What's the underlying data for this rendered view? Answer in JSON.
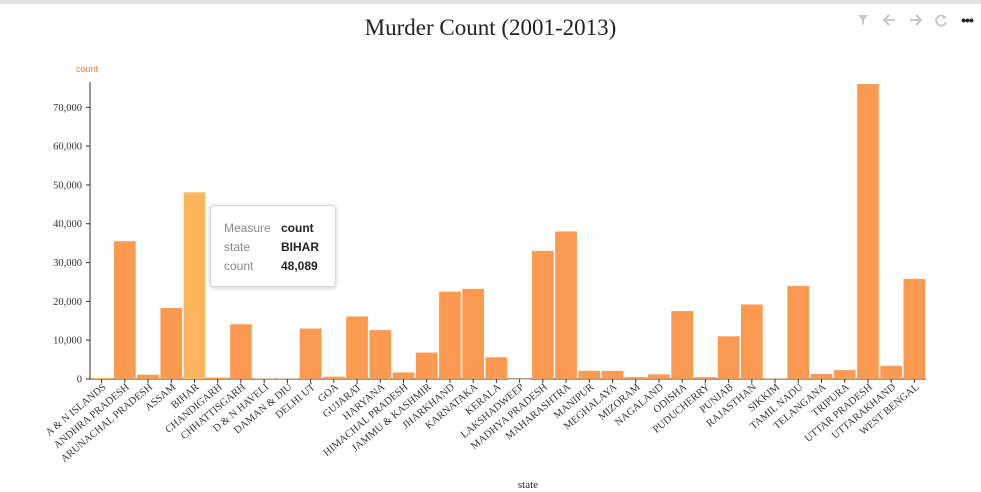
{
  "title": "Murder Count (2001-2013)",
  "toolbar": {
    "icons": [
      "filter-icon",
      "back-arrow-icon",
      "forward-arrow-icon",
      "refresh-icon",
      "more-icon"
    ],
    "more_label": "•••"
  },
  "tooltip": {
    "rows": [
      {
        "key": "Measure",
        "value": "count"
      },
      {
        "key": "state",
        "value": "BIHAR"
      },
      {
        "key": "count",
        "value": "48,089"
      }
    ]
  },
  "colors": {
    "bar": "#fd9a52",
    "bar_highlight": "#fdb55e",
    "y_title": "#f07b3f"
  },
  "chart_data": {
    "type": "bar",
    "title": "Murder Count (2001-2013)",
    "xlabel": "state",
    "ylabel": "count",
    "ylim": [
      0,
      76000
    ],
    "yticks": [
      0,
      10000,
      20000,
      30000,
      40000,
      50000,
      60000,
      70000
    ],
    "ytick_labels": [
      "0",
      "10,000",
      "20,000",
      "30,000",
      "40,000",
      "50,000",
      "60,000",
      "70,000"
    ],
    "highlight": "BIHAR",
    "categories": [
      "A & N ISLANDS",
      "ANDHRA PRADESH",
      "ARUNACHAL PRADESH",
      "ASSAM",
      "BIHAR",
      "CHANDIGARH",
      "CHHATTISGARH",
      "D & N HAVELI",
      "DAMAN & DIU",
      "DELHI UT",
      "GOA",
      "GUJARAT",
      "HARYANA",
      "HIMACHAL PRADESH",
      "JAMMU & KASHMIR",
      "JHARKHAND",
      "KARNATAKA",
      "KERALA",
      "LAKSHADWEEP",
      "MADHYA PRADESH",
      "MAHARASHTRA",
      "MANIPUR",
      "MEGHALAYA",
      "MIZORAM",
      "NAGALAND",
      "ODISHA",
      "PUDUCHERRY",
      "PUNJAB",
      "RAJASTHAN",
      "SIKKIM",
      "TAMIL NADU",
      "TELANGANA",
      "TRIPURA",
      "UTTAR PRADESH",
      "UTTARAKHAND",
      "WEST BENGAL"
    ],
    "values": [
      200,
      35500,
      1100,
      18300,
      48089,
      350,
      14100,
      150,
      120,
      13000,
      600,
      16100,
      12600,
      1700,
      6800,
      22500,
      23200,
      5600,
      10,
      33000,
      38000,
      2100,
      2100,
      500,
      1200,
      17500,
      500,
      11000,
      19200,
      150,
      24000,
      1300,
      2300,
      76000,
      3400,
      25800
    ]
  }
}
